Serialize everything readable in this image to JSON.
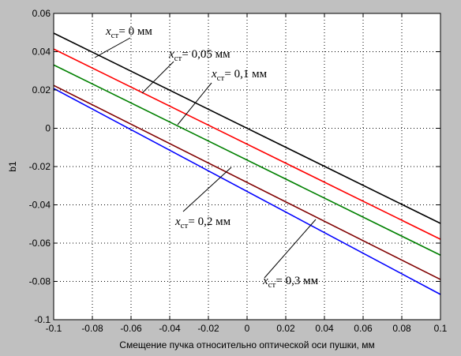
{
  "chart_data": {
    "type": "line",
    "xlabel": "Смещение пучка относительно оптической оси пушки, мм",
    "ylabel": "b1",
    "xlim": [
      -0.1,
      0.1
    ],
    "ylim": [
      -0.1,
      0.06
    ],
    "xticks": [
      "-0.1",
      "-0.08",
      "-0.06",
      "-0.04",
      "-0.02",
      "0",
      "0.02",
      "0.04",
      "0.06",
      "0.08",
      "0.1"
    ],
    "yticks": [
      "0.06",
      "0.04",
      "0.02",
      "0",
      "-0.02",
      "-0.04",
      "-0.06",
      "-0.08",
      "-0.1"
    ],
    "grid": true,
    "series": [
      {
        "name": "x_ст = 0 мм",
        "label": {
          "base": "x",
          "sub": "ст",
          "rest": "= 0  мм"
        },
        "color": "#000000",
        "x": [
          -0.1,
          0.1
        ],
        "y": [
          0.0497,
          -0.0497
        ]
      },
      {
        "name": "x_ст = 0,05 мм",
        "label": {
          "base": "x",
          "sub": "ст",
          "rest": "= 0,05  мм"
        },
        "color": "#ff0000",
        "x": [
          -0.1,
          0.1
        ],
        "y": [
          0.0414,
          -0.058
        ]
      },
      {
        "name": "x_ст = 0,1 мм",
        "label": {
          "base": "x",
          "sub": "ст",
          "rest": "= 0,1  мм"
        },
        "color": "#008000",
        "x": [
          -0.1,
          0.1
        ],
        "y": [
          0.0331,
          -0.0663
        ]
      },
      {
        "name": "x_ст = 0,2 мм",
        "label": {
          "base": "x",
          "sub": "ст",
          "rest": "= 0,2  мм"
        },
        "color": "#800000",
        "x": [
          -0.1,
          0.1
        ],
        "y": [
          0.0224,
          -0.079
        ]
      },
      {
        "name": "x_ст = 0,3 мм",
        "label": {
          "base": "x",
          "sub": "ст",
          "rest": "= 0,3  мм"
        },
        "color": "#0000ff",
        "x": [
          -0.1,
          0.1
        ],
        "y": [
          0.0208,
          -0.0868
        ]
      }
    ]
  }
}
